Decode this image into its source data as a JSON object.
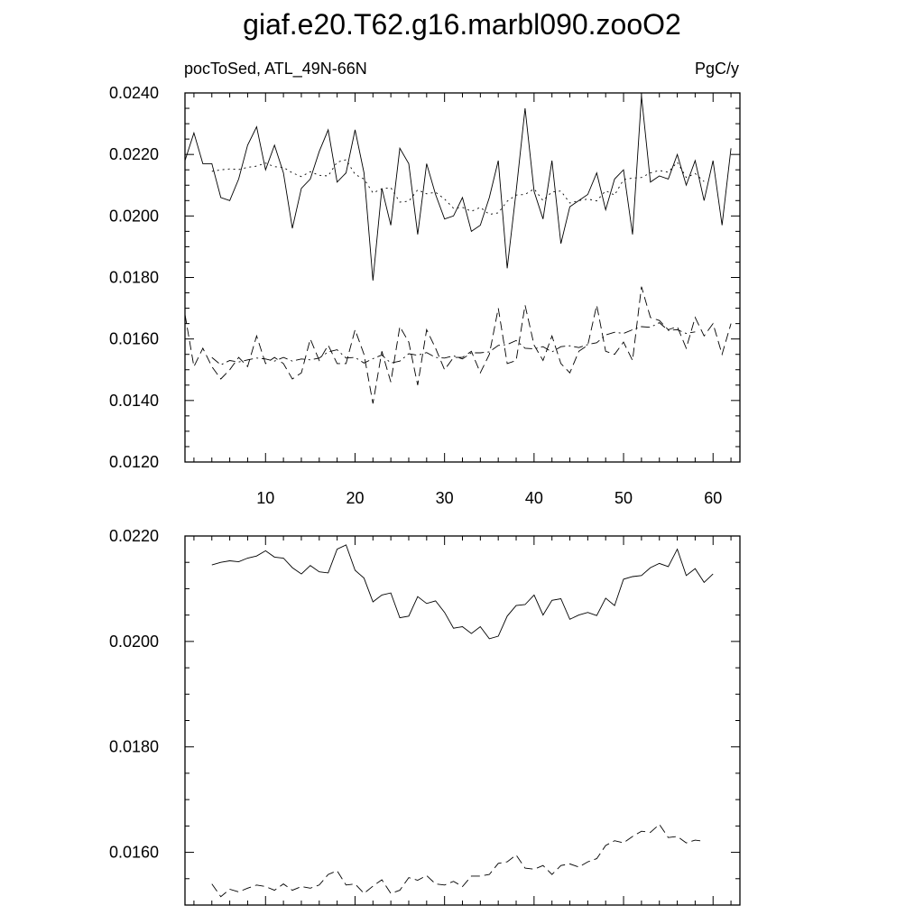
{
  "page_title": "giaf.e20.T62.g16.marbl090.zooO2",
  "chart_data": [
    {
      "type": "line",
      "title": "giaf.e20.T62.g16.marbl090.zooO2",
      "left_subtitle": "pocToSed, ATL_49N-66N",
      "right_subtitle": "PgC/y",
      "xlim": [
        1,
        63
      ],
      "ylim": [
        0.012,
        0.024
      ],
      "x_ticks": [
        10,
        20,
        30,
        40,
        50,
        60
      ],
      "x_tick_labels": [
        "10",
        "20",
        "30",
        "40",
        "50",
        "60"
      ],
      "y_ticks": [
        0.012,
        0.014,
        0.016,
        0.018,
        0.02,
        0.022,
        0.024
      ],
      "y_tick_labels": [
        "0.0120",
        "0.0140",
        "0.0160",
        "0.0180",
        "0.0200",
        "0.0220",
        "0.0240"
      ],
      "y_minor_step": 0.0005,
      "grid": false,
      "series": [
        {
          "style": "solid",
          "x_start": 1,
          "x_step": 1,
          "values": [
            0.0218,
            0.0227,
            0.0217,
            0.0217,
            0.0206,
            0.0205,
            0.0212,
            0.0223,
            0.0229,
            0.0215,
            0.0223,
            0.0214,
            0.0196,
            0.0209,
            0.0212,
            0.0221,
            0.0228,
            0.0211,
            0.0214,
            0.0228,
            0.0214,
            0.0179,
            0.0209,
            0.0197,
            0.0222,
            0.0217,
            0.0194,
            0.0217,
            0.0207,
            0.0199,
            0.02,
            0.0206,
            0.0195,
            0.0197,
            0.0206,
            0.0218,
            0.0183,
            0.0208,
            0.0235,
            0.0208,
            0.0199,
            0.0218,
            0.0191,
            0.0203,
            0.0205,
            0.0207,
            0.0214,
            0.0202,
            0.0212,
            0.0215,
            0.0194,
            0.0239,
            0.0211,
            0.0213,
            0.0212,
            0.022,
            0.021,
            0.0218,
            0.0205,
            0.0218,
            0.0197,
            0.0222
          ]
        },
        {
          "style": "dotted",
          "x_start": 4,
          "x_step": 1,
          "values": [
            0.02145,
            0.0215,
            0.02153,
            0.02151,
            0.02158,
            0.02162,
            0.02172,
            0.0216,
            0.02158,
            0.0214,
            0.02128,
            0.02144,
            0.02132,
            0.0213,
            0.02175,
            0.02183,
            0.02135,
            0.0212,
            0.02075,
            0.02088,
            0.02092,
            0.02045,
            0.02048,
            0.02085,
            0.02072,
            0.02077,
            0.02055,
            0.02025,
            0.02028,
            0.02015,
            0.02028,
            0.02005,
            0.0201,
            0.02048,
            0.02068,
            0.0207,
            0.02088,
            0.0205,
            0.02078,
            0.02081,
            0.02042,
            0.0205,
            0.02055,
            0.02049,
            0.02082,
            0.02068,
            0.02118,
            0.02123,
            0.02125,
            0.0214,
            0.02148,
            0.02142,
            0.02175,
            0.02125,
            0.02138,
            0.02112
          ]
        },
        {
          "style": "dashed",
          "x_start": 1,
          "x_step": 1,
          "values": [
            0.0168,
            0.0151,
            0.0157,
            0.0151,
            0.0147,
            0.015,
            0.0154,
            0.0151,
            0.0161,
            0.0152,
            0.0154,
            0.0152,
            0.0147,
            0.0149,
            0.016,
            0.0153,
            0.0158,
            0.0152,
            0.0152,
            0.0163,
            0.0155,
            0.0139,
            0.0156,
            0.0146,
            0.0164,
            0.0159,
            0.0145,
            0.0163,
            0.0157,
            0.015,
            0.0154,
            0.0154,
            0.0156,
            0.0149,
            0.0155,
            0.017,
            0.0152,
            0.0153,
            0.0171,
            0.0158,
            0.0153,
            0.0161,
            0.0152,
            0.0149,
            0.0156,
            0.0158,
            0.0171,
            0.0156,
            0.0155,
            0.0159,
            0.0153,
            0.0177,
            0.0167,
            0.0166,
            0.0163,
            0.0164,
            0.0157,
            0.0167,
            0.0161,
            0.0165,
            0.0155,
            0.0165
          ]
        },
        {
          "style": "dash-dot",
          "x_start": 4,
          "x_step": 1,
          "values": [
            0.0154,
            0.01516,
            0.0153,
            0.01525,
            0.01532,
            0.01538,
            0.01535,
            0.01528,
            0.0154,
            0.01528,
            0.01535,
            0.01532,
            0.01538,
            0.01558,
            0.01565,
            0.01538,
            0.0154,
            0.01522,
            0.01536,
            0.01548,
            0.01522,
            0.01528,
            0.01552,
            0.01547,
            0.01556,
            0.0154,
            0.01538,
            0.01545,
            0.01535,
            0.01555,
            0.01555,
            0.01558,
            0.01579,
            0.01582,
            0.01595,
            0.0157,
            0.01568,
            0.01575,
            0.01558,
            0.01575,
            0.01578,
            0.01572,
            0.01582,
            0.01588,
            0.01613,
            0.01622,
            0.01618,
            0.0163,
            0.0164,
            0.01638,
            0.01653,
            0.01628,
            0.0163,
            0.01618,
            0.01623
          ]
        }
      ]
    },
    {
      "type": "line",
      "xlim": [
        1,
        63
      ],
      "ylim": [
        0.015,
        0.022
      ],
      "x_ticks": [
        10,
        20,
        30,
        40,
        50,
        60
      ],
      "y_ticks": [
        0.016,
        0.018,
        0.02,
        0.022
      ],
      "y_tick_labels": [
        "0.0160",
        "0.0180",
        "0.0200",
        "0.0220"
      ],
      "y_minor_step": 0.0005,
      "grid": false,
      "series": [
        {
          "style": "solid",
          "x_start": 4,
          "x_step": 1,
          "values": [
            0.02145,
            0.0215,
            0.02153,
            0.02151,
            0.02158,
            0.02162,
            0.02172,
            0.0216,
            0.02158,
            0.0214,
            0.02128,
            0.02144,
            0.02132,
            0.0213,
            0.02175,
            0.02183,
            0.02135,
            0.0212,
            0.02075,
            0.02088,
            0.02092,
            0.02045,
            0.02048,
            0.02085,
            0.02072,
            0.02077,
            0.02055,
            0.02025,
            0.02028,
            0.02015,
            0.02028,
            0.02005,
            0.0201,
            0.02048,
            0.02068,
            0.0207,
            0.02088,
            0.0205,
            0.02078,
            0.02081,
            0.02042,
            0.0205,
            0.02055,
            0.02049,
            0.02082,
            0.02068,
            0.02118,
            0.02123,
            0.02125,
            0.0214,
            0.02148,
            0.02142,
            0.02175,
            0.02125,
            0.02138,
            0.02112,
            0.02128
          ]
        },
        {
          "style": "dashed",
          "x_start": 4,
          "x_step": 1,
          "values": [
            0.0154,
            0.01516,
            0.0153,
            0.01525,
            0.01532,
            0.01538,
            0.01535,
            0.01528,
            0.0154,
            0.01528,
            0.01535,
            0.01532,
            0.01538,
            0.01558,
            0.01565,
            0.01538,
            0.0154,
            0.01522,
            0.01536,
            0.01548,
            0.01522,
            0.01528,
            0.01552,
            0.01547,
            0.01556,
            0.0154,
            0.01538,
            0.01545,
            0.01535,
            0.01555,
            0.01555,
            0.01558,
            0.01579,
            0.01582,
            0.01595,
            0.0157,
            0.01568,
            0.01575,
            0.01558,
            0.01575,
            0.01578,
            0.01572,
            0.01582,
            0.01588,
            0.01613,
            0.01622,
            0.01618,
            0.0163,
            0.0164,
            0.01638,
            0.01653,
            0.01628,
            0.0163,
            0.01618,
            0.01623,
            0.01621
          ]
        }
      ]
    }
  ]
}
